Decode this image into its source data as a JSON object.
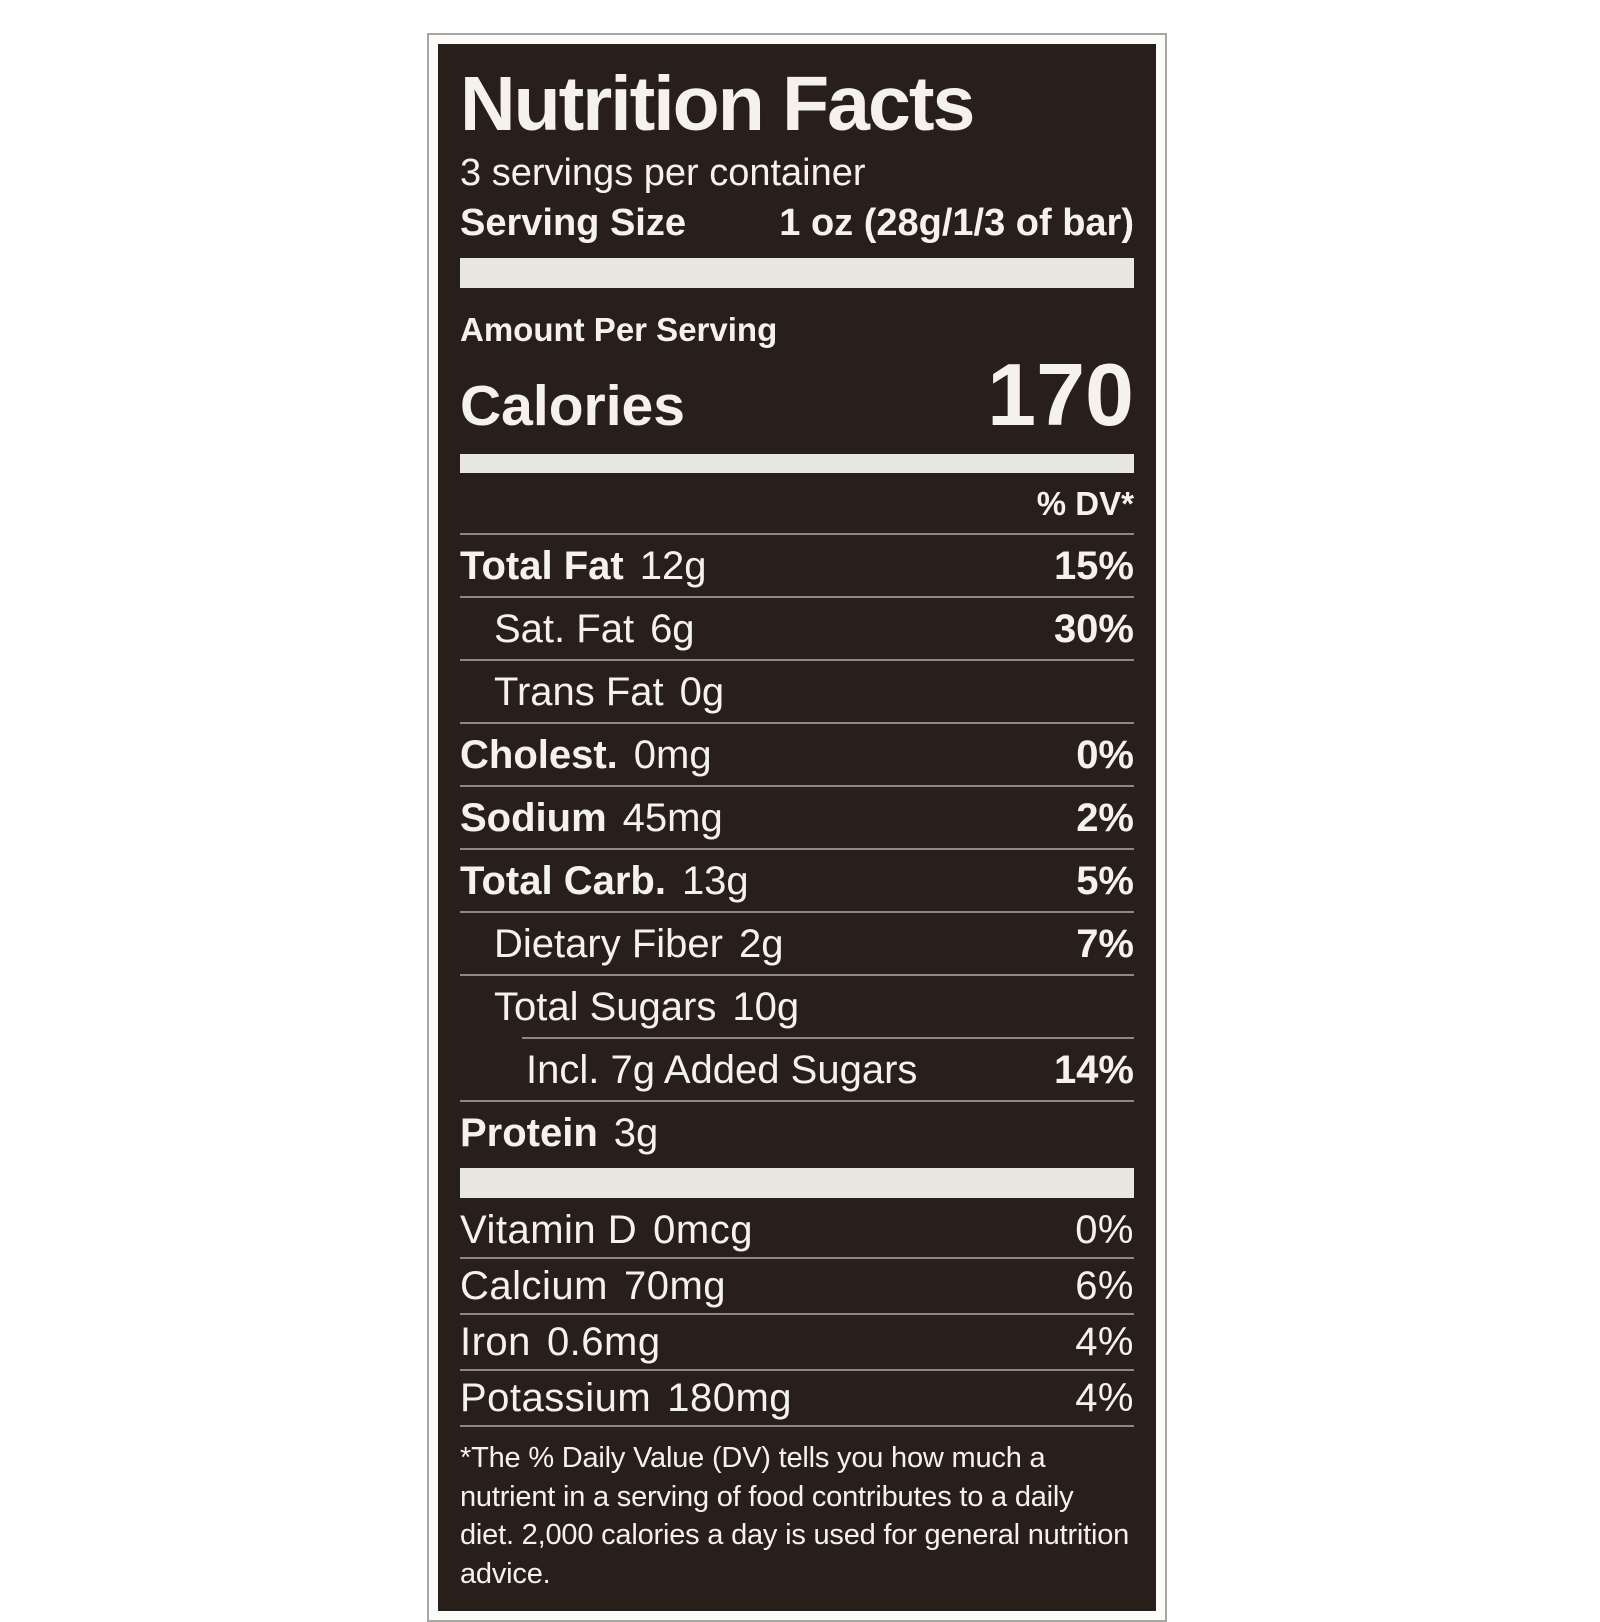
{
  "label": {
    "title": "Nutrition Facts",
    "servings_per_container": "3 servings per container",
    "serving_size_label": "Serving Size",
    "serving_size_value": "1 oz (28g/1/3 of bar)",
    "amount_per_serving": "Amount Per Serving",
    "calories_label": "Calories",
    "calories_value": "170",
    "dv_header": "% DV*",
    "nutrients": [
      {
        "name": "Total Fat",
        "amount": "12g",
        "dv": "15%"
      },
      {
        "name": "Sat. Fat",
        "amount": "6g",
        "dv": "30%"
      },
      {
        "name": "Trans Fat",
        "amount": "0g",
        "dv": ""
      },
      {
        "name": "Cholest.",
        "amount": "0mg",
        "dv": "0%"
      },
      {
        "name": "Sodium",
        "amount": "45mg",
        "dv": "2%"
      },
      {
        "name": "Total Carb.",
        "amount": "13g",
        "dv": "5%"
      },
      {
        "name": "Dietary Fiber",
        "amount": "2g",
        "dv": "7%"
      },
      {
        "name": "Total Sugars",
        "amount": "10g",
        "dv": ""
      },
      {
        "name": "Incl. 7g Added Sugars",
        "amount": "",
        "dv": "14%"
      },
      {
        "name": "Protein",
        "amount": "3g",
        "dv": ""
      }
    ],
    "micronutrients": [
      {
        "name": "Vitamin D",
        "amount": "0mcg",
        "dv": "0%"
      },
      {
        "name": "Calcium",
        "amount": "70mg",
        "dv": "6%"
      },
      {
        "name": "Iron",
        "amount": "0.6mg",
        "dv": "4%"
      },
      {
        "name": "Potassium",
        "amount": "180mg",
        "dv": "4%"
      }
    ],
    "footnote": "*The % Daily Value (DV) tells you how much a nutrient in a serving of food contributes to a daily diet. 2,000 calories a day is used for general nutrition advice."
  },
  "colors": {
    "label_background": "#281f1b",
    "text": "#f5f2ee",
    "divider": "#8f8881",
    "separator_bar": "#e9e7e2",
    "page_background": "#ffffff",
    "frame": "#fbfbfa",
    "frame_border": "#a8a6a3"
  }
}
